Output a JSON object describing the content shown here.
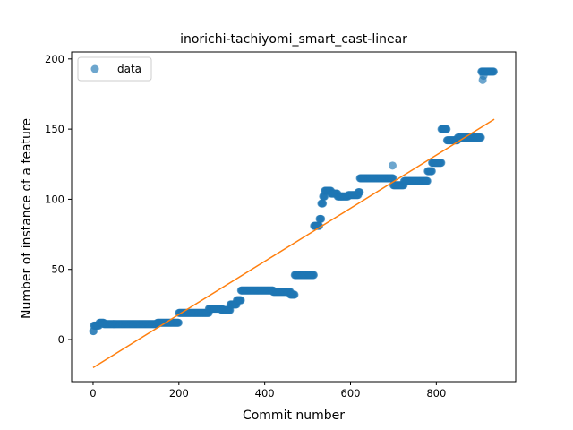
{
  "chart_data": {
    "type": "scatter",
    "title": "inorichi-tachiyomi_smart_cast-linear",
    "xlabel": "Commit number",
    "ylabel": "Number of instance of a feature",
    "xlim": [
      -50,
      985
    ],
    "ylim": [
      -30,
      205
    ],
    "xticks": [
      0,
      200,
      400,
      600,
      800
    ],
    "yticks": [
      0,
      50,
      100,
      150,
      200
    ],
    "legend": {
      "position": "top-left",
      "entries": [
        "data"
      ]
    },
    "colors": {
      "data": "#1f77b4",
      "fit": "#ff7f0e"
    },
    "series": [
      {
        "name": "data",
        "kind": "scatter",
        "segments": [
          {
            "x0": 0,
            "x1": 2,
            "y": 6
          },
          {
            "x0": 2,
            "x1": 15,
            "y": 10
          },
          {
            "x0": 15,
            "x1": 25,
            "y": 12
          },
          {
            "x0": 25,
            "x1": 150,
            "y": 11
          },
          {
            "x0": 150,
            "x1": 200,
            "y": 12
          },
          {
            "x0": 200,
            "x1": 270,
            "y": 19
          },
          {
            "x0": 270,
            "x1": 300,
            "y": 22
          },
          {
            "x0": 300,
            "x1": 320,
            "y": 21
          },
          {
            "x0": 320,
            "x1": 335,
            "y": 25
          },
          {
            "x0": 335,
            "x1": 345,
            "y": 28
          },
          {
            "x0": 345,
            "x1": 420,
            "y": 35
          },
          {
            "x0": 420,
            "x1": 460,
            "y": 34
          },
          {
            "x0": 460,
            "x1": 470,
            "y": 32
          },
          {
            "x0": 470,
            "x1": 515,
            "y": 46
          },
          {
            "x0": 515,
            "x1": 528,
            "y": 81
          },
          {
            "x0": 528,
            "x1": 532,
            "y": 86
          },
          {
            "x0": 532,
            "x1": 536,
            "y": 97
          },
          {
            "x0": 536,
            "x1": 540,
            "y": 102
          },
          {
            "x0": 540,
            "x1": 555,
            "y": 106
          },
          {
            "x0": 555,
            "x1": 570,
            "y": 104
          },
          {
            "x0": 570,
            "x1": 595,
            "y": 102
          },
          {
            "x0": 595,
            "x1": 618,
            "y": 103
          },
          {
            "x0": 618,
            "x1": 622,
            "y": 105
          },
          {
            "x0": 622,
            "x1": 700,
            "y": 115
          },
          {
            "x0": 700,
            "x1": 725,
            "y": 110
          },
          {
            "x0": 725,
            "x1": 780,
            "y": 113
          },
          {
            "x0": 780,
            "x1": 790,
            "y": 120
          },
          {
            "x0": 790,
            "x1": 812,
            "y": 126
          },
          {
            "x0": 812,
            "x1": 825,
            "y": 150
          },
          {
            "x0": 825,
            "x1": 850,
            "y": 142
          },
          {
            "x0": 850,
            "x1": 905,
            "y": 144
          },
          {
            "x0": 905,
            "x1": 935,
            "y": 191
          }
        ],
        "points": [
          {
            "x": 698,
            "y": 124
          },
          {
            "x": 908,
            "y": 185
          },
          {
            "x": 910,
            "y": 188
          }
        ]
      },
      {
        "name": "",
        "kind": "line",
        "x": [
          0,
          935
        ],
        "y": [
          -20,
          157
        ]
      }
    ]
  }
}
